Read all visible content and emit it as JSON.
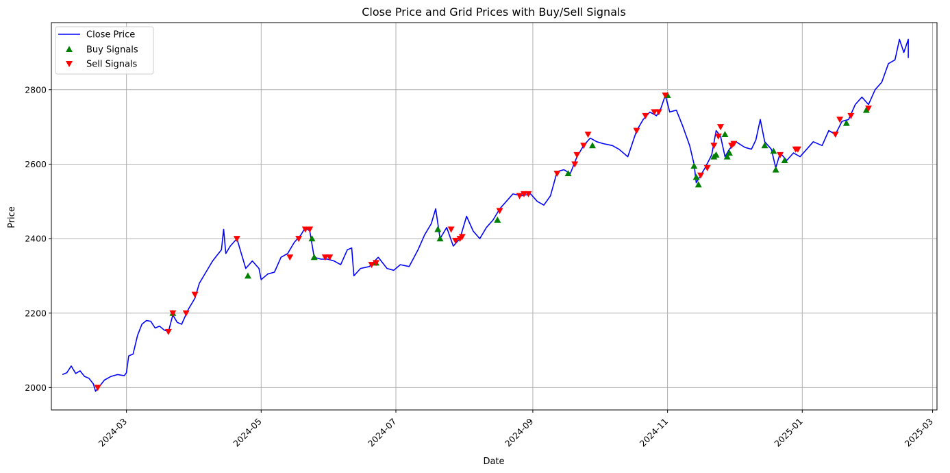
{
  "chart_data": {
    "type": "line",
    "title": "Close Price and Grid Prices with Buy/Sell Signals",
    "xlabel": "Date",
    "ylabel": "Price",
    "xlim": [
      "2024-01-27",
      "2025-03-03"
    ],
    "ylim": [
      1940,
      2980
    ],
    "x_tick_labels": [
      "2024-03",
      "2024-05",
      "2024-07",
      "2024-09",
      "2024-11",
      "2025-01",
      "2025-03"
    ],
    "x_ticks": [
      "2024-03-01",
      "2024-05-01",
      "2024-07-01",
      "2024-09-01",
      "2024-11-01",
      "2025-01-01",
      "2025-03-01"
    ],
    "y_ticks": [
      2000,
      2200,
      2400,
      2600,
      2800
    ],
    "grid": true,
    "legend": {
      "position": "top-left",
      "entries": [
        "Close Price",
        "Buy Signals",
        "Sell Signals"
      ]
    },
    "colors": {
      "close": "#0000ff",
      "buy": "#008000",
      "sell": "#ff0000"
    },
    "series": [
      {
        "name": "Close Price",
        "kind": "line",
        "points": [
          [
            "2024-02-01",
            2035
          ],
          [
            "2024-02-03",
            2040
          ],
          [
            "2024-02-05",
            2058
          ],
          [
            "2024-02-07",
            2038
          ],
          [
            "2024-02-09",
            2045
          ],
          [
            "2024-02-11",
            2030
          ],
          [
            "2024-02-13",
            2025
          ],
          [
            "2024-02-15",
            2010
          ],
          [
            "2024-02-16",
            1990
          ],
          [
            "2024-02-18",
            2005
          ],
          [
            "2024-02-20",
            2020
          ],
          [
            "2024-02-23",
            2030
          ],
          [
            "2024-02-26",
            2035
          ],
          [
            "2024-02-29",
            2032
          ],
          [
            "2024-03-01",
            2040
          ],
          [
            "2024-03-02",
            2085
          ],
          [
            "2024-03-04",
            2090
          ],
          [
            "2024-03-06",
            2140
          ],
          [
            "2024-03-08",
            2170
          ],
          [
            "2024-03-10",
            2180
          ],
          [
            "2024-03-12",
            2178
          ],
          [
            "2024-03-14",
            2160
          ],
          [
            "2024-03-16",
            2165
          ],
          [
            "2024-03-18",
            2155
          ],
          [
            "2024-03-20",
            2150
          ],
          [
            "2024-03-22",
            2195
          ],
          [
            "2024-03-24",
            2175
          ],
          [
            "2024-03-26",
            2170
          ],
          [
            "2024-03-29",
            2210
          ],
          [
            "2024-04-01",
            2240
          ],
          [
            "2024-04-03",
            2280
          ],
          [
            "2024-04-05",
            2300
          ],
          [
            "2024-04-07",
            2320
          ],
          [
            "2024-04-09",
            2340
          ],
          [
            "2024-04-11",
            2355
          ],
          [
            "2024-04-13",
            2370
          ],
          [
            "2024-04-14",
            2425
          ],
          [
            "2024-04-15",
            2360
          ],
          [
            "2024-04-17",
            2380
          ],
          [
            "2024-04-20",
            2400
          ],
          [
            "2024-04-22",
            2360
          ],
          [
            "2024-04-24",
            2320
          ],
          [
            "2024-04-27",
            2340
          ],
          [
            "2024-04-30",
            2320
          ],
          [
            "2024-05-01",
            2290
          ],
          [
            "2024-05-04",
            2305
          ],
          [
            "2024-05-07",
            2310
          ],
          [
            "2024-05-10",
            2350
          ],
          [
            "2024-05-13",
            2360
          ],
          [
            "2024-05-16",
            2390
          ],
          [
            "2024-05-19",
            2410
          ],
          [
            "2024-05-21",
            2430
          ],
          [
            "2024-05-23",
            2420
          ],
          [
            "2024-05-25",
            2350
          ],
          [
            "2024-05-28",
            2345
          ],
          [
            "2024-05-31",
            2345
          ],
          [
            "2024-06-03",
            2340
          ],
          [
            "2024-06-06",
            2330
          ],
          [
            "2024-06-09",
            2370
          ],
          [
            "2024-06-11",
            2375
          ],
          [
            "2024-06-12",
            2300
          ],
          [
            "2024-06-15",
            2320
          ],
          [
            "2024-06-19",
            2325
          ],
          [
            "2024-06-23",
            2350
          ],
          [
            "2024-06-27",
            2320
          ],
          [
            "2024-06-30",
            2315
          ],
          [
            "2024-07-03",
            2330
          ],
          [
            "2024-07-07",
            2325
          ],
          [
            "2024-07-11",
            2370
          ],
          [
            "2024-07-14",
            2410
          ],
          [
            "2024-07-17",
            2440
          ],
          [
            "2024-07-19",
            2480
          ],
          [
            "2024-07-21",
            2400
          ],
          [
            "2024-07-24",
            2430
          ],
          [
            "2024-07-27",
            2380
          ],
          [
            "2024-07-30",
            2400
          ],
          [
            "2024-08-02",
            2460
          ],
          [
            "2024-08-05",
            2420
          ],
          [
            "2024-08-08",
            2400
          ],
          [
            "2024-08-11",
            2430
          ],
          [
            "2024-08-14",
            2450
          ],
          [
            "2024-08-17",
            2480
          ],
          [
            "2024-08-20",
            2500
          ],
          [
            "2024-08-23",
            2520
          ],
          [
            "2024-08-27",
            2515
          ],
          [
            "2024-08-31",
            2520
          ],
          [
            "2024-09-03",
            2500
          ],
          [
            "2024-09-06",
            2490
          ],
          [
            "2024-09-09",
            2515
          ],
          [
            "2024-09-12",
            2580
          ],
          [
            "2024-09-15",
            2585
          ],
          [
            "2024-09-18",
            2575
          ],
          [
            "2024-09-21",
            2620
          ],
          [
            "2024-09-24",
            2650
          ],
          [
            "2024-09-27",
            2670
          ],
          [
            "2024-09-30",
            2660
          ],
          [
            "2024-10-03",
            2655
          ],
          [
            "2024-10-07",
            2650
          ],
          [
            "2024-10-10",
            2640
          ],
          [
            "2024-10-14",
            2620
          ],
          [
            "2024-10-18",
            2690
          ],
          [
            "2024-10-21",
            2720
          ],
          [
            "2024-10-24",
            2740
          ],
          [
            "2024-10-27",
            2730
          ],
          [
            "2024-10-29",
            2750
          ],
          [
            "2024-10-31",
            2785
          ],
          [
            "2024-11-02",
            2740
          ],
          [
            "2024-11-05",
            2745
          ],
          [
            "2024-11-08",
            2700
          ],
          [
            "2024-11-11",
            2650
          ],
          [
            "2024-11-13",
            2600
          ],
          [
            "2024-11-14",
            2550
          ],
          [
            "2024-11-16",
            2570
          ],
          [
            "2024-11-18",
            2590
          ],
          [
            "2024-11-21",
            2625
          ],
          [
            "2024-11-23",
            2690
          ],
          [
            "2024-11-25",
            2675
          ],
          [
            "2024-11-27",
            2620
          ],
          [
            "2024-11-29",
            2640
          ],
          [
            "2024-12-02",
            2660
          ],
          [
            "2024-12-06",
            2645
          ],
          [
            "2024-12-09",
            2640
          ],
          [
            "2024-12-11",
            2665
          ],
          [
            "2024-12-13",
            2720
          ],
          [
            "2024-12-15",
            2660
          ],
          [
            "2024-12-18",
            2640
          ],
          [
            "2024-12-20",
            2590
          ],
          [
            "2024-12-22",
            2630
          ],
          [
            "2024-12-25",
            2610
          ],
          [
            "2024-12-28",
            2630
          ],
          [
            "2024-12-31",
            2620
          ],
          [
            "2025-01-03",
            2640
          ],
          [
            "2025-01-06",
            2660
          ],
          [
            "2025-01-10",
            2650
          ],
          [
            "2025-01-13",
            2690
          ],
          [
            "2025-01-16",
            2680
          ],
          [
            "2025-01-19",
            2715
          ],
          [
            "2025-01-22",
            2720
          ],
          [
            "2025-01-25",
            2760
          ],
          [
            "2025-01-28",
            2780
          ],
          [
            "2025-01-31",
            2760
          ],
          [
            "2025-02-03",
            2800
          ],
          [
            "2025-02-06",
            2820
          ],
          [
            "2025-02-09",
            2870
          ],
          [
            "2025-02-12",
            2880
          ],
          [
            "2025-02-14",
            2935
          ],
          [
            "2025-02-16",
            2900
          ],
          [
            "2025-02-18",
            2935
          ],
          [
            "2025-02-18",
            2885
          ]
        ]
      },
      {
        "name": "Buy Signals",
        "kind": "marker-up",
        "points": [
          [
            "2024-03-22",
            2200
          ],
          [
            "2024-04-25",
            2300
          ],
          [
            "2024-05-24",
            2400
          ],
          [
            "2024-05-25",
            2350
          ],
          [
            "2024-06-22",
            2335
          ],
          [
            "2024-07-20",
            2425
          ],
          [
            "2024-07-21",
            2400
          ],
          [
            "2024-08-16",
            2450
          ],
          [
            "2024-09-17",
            2575
          ],
          [
            "2024-09-28",
            2650
          ],
          [
            "2024-11-01",
            2785
          ],
          [
            "2024-11-13",
            2595
          ],
          [
            "2024-11-14",
            2565
          ],
          [
            "2024-11-15",
            2545
          ],
          [
            "2024-11-22",
            2620
          ],
          [
            "2024-11-23",
            2625
          ],
          [
            "2024-11-27",
            2680
          ],
          [
            "2024-11-28",
            2620
          ],
          [
            "2024-11-29",
            2630
          ],
          [
            "2024-12-15",
            2650
          ],
          [
            "2024-12-19",
            2635
          ],
          [
            "2024-12-20",
            2585
          ],
          [
            "2024-12-24",
            2610
          ],
          [
            "2025-01-21",
            2710
          ],
          [
            "2025-01-30",
            2745
          ]
        ]
      },
      {
        "name": "Sell Signals",
        "kind": "marker-down",
        "points": [
          [
            "2024-02-17",
            2000
          ],
          [
            "2024-03-20",
            2150
          ],
          [
            "2024-03-22",
            2200
          ],
          [
            "2024-03-28",
            2200
          ],
          [
            "2024-04-01",
            2250
          ],
          [
            "2024-04-20",
            2400
          ],
          [
            "2024-05-14",
            2350
          ],
          [
            "2024-05-18",
            2400
          ],
          [
            "2024-05-21",
            2425
          ],
          [
            "2024-05-23",
            2425
          ],
          [
            "2024-05-30",
            2350
          ],
          [
            "2024-06-01",
            2350
          ],
          [
            "2024-06-20",
            2330
          ],
          [
            "2024-06-22",
            2335
          ],
          [
            "2024-07-26",
            2425
          ],
          [
            "2024-07-28",
            2395
          ],
          [
            "2024-07-30",
            2400
          ],
          [
            "2024-07-31",
            2405
          ],
          [
            "2024-08-17",
            2475
          ],
          [
            "2024-08-26",
            2515
          ],
          [
            "2024-08-28",
            2520
          ],
          [
            "2024-08-30",
            2520
          ],
          [
            "2024-09-12",
            2575
          ],
          [
            "2024-09-20",
            2600
          ],
          [
            "2024-09-21",
            2625
          ],
          [
            "2024-09-24",
            2650
          ],
          [
            "2024-09-26",
            2680
          ],
          [
            "2024-10-18",
            2690
          ],
          [
            "2024-10-22",
            2730
          ],
          [
            "2024-10-26",
            2740
          ],
          [
            "2024-10-28",
            2740
          ],
          [
            "2024-10-31",
            2785
          ],
          [
            "2024-11-16",
            2570
          ],
          [
            "2024-11-19",
            2590
          ],
          [
            "2024-11-22",
            2650
          ],
          [
            "2024-11-24",
            2675
          ],
          [
            "2024-11-25",
            2700
          ],
          [
            "2024-11-30",
            2650
          ],
          [
            "2024-12-01",
            2655
          ],
          [
            "2024-12-22",
            2625
          ],
          [
            "2024-12-29",
            2640
          ],
          [
            "2024-12-30",
            2640
          ],
          [
            "2025-01-16",
            2680
          ],
          [
            "2025-01-18",
            2720
          ],
          [
            "2025-01-23",
            2730
          ],
          [
            "2025-01-31",
            2750
          ]
        ]
      }
    ]
  }
}
